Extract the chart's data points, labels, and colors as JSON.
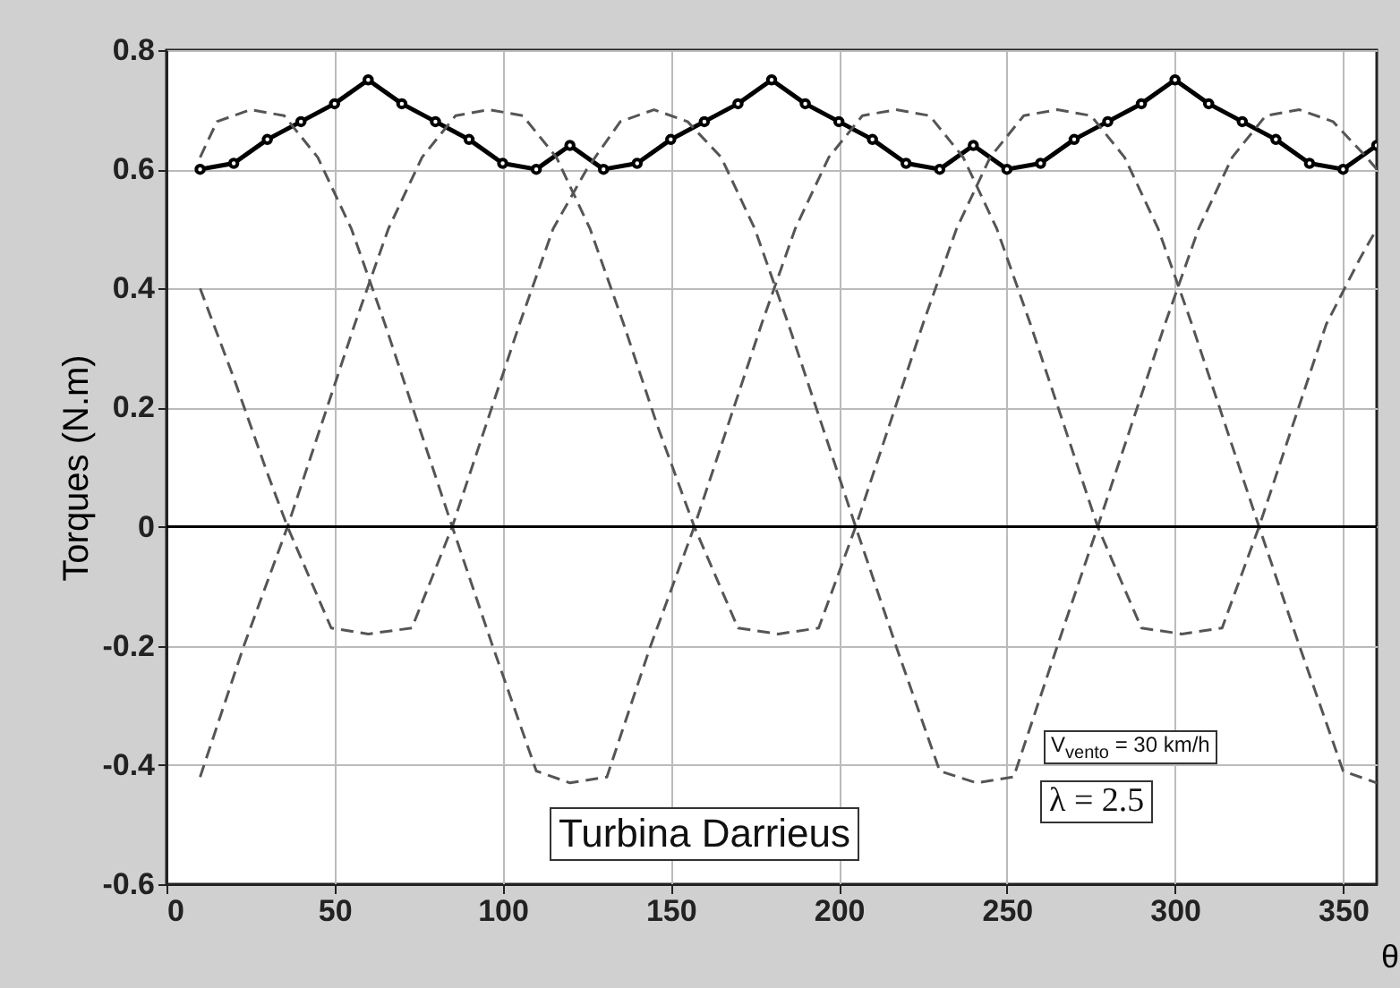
{
  "chart_data": {
    "type": "line",
    "ylabel": "Torques (N.m)",
    "xlabel": "θ",
    "xlim": [
      0,
      360
    ],
    "xticks": [
      0,
      50,
      100,
      150,
      200,
      250,
      300,
      350
    ],
    "ylim": [
      -0.6,
      0.8
    ],
    "yticks": [
      -0.6,
      -0.4,
      -0.2,
      0,
      0.2,
      0.4,
      0.6,
      0.8
    ],
    "grid": true,
    "ref_lines": [
      {
        "axis": "y",
        "value": 0,
        "color": "#000000"
      }
    ],
    "annotations": [
      "Turbina Darrieus",
      "V$_{vento}$ = 30 km/h",
      "λ = 2.5"
    ],
    "series": [
      {
        "color": "#000000",
        "line_style": "solid",
        "marker": "circle",
        "x": [
          10,
          20,
          30,
          40,
          50,
          60,
          70,
          80,
          90,
          100,
          110,
          120,
          130,
          140,
          150,
          160,
          170,
          180,
          190,
          200,
          210,
          220,
          230,
          240,
          250,
          260,
          270,
          280,
          290,
          300,
          310,
          320,
          330,
          340,
          350,
          360
        ],
        "values": [
          0.6,
          0.61,
          0.65,
          0.68,
          0.71,
          0.75,
          0.71,
          0.68,
          0.65,
          0.61,
          0.6,
          0.64,
          0.6,
          0.61,
          0.65,
          0.68,
          0.71,
          0.75,
          0.71,
          0.68,
          0.65,
          0.61,
          0.6,
          0.64,
          0.6,
          0.61,
          0.65,
          0.68,
          0.71,
          0.75,
          0.71,
          0.68,
          0.65,
          0.61,
          0.6,
          0.64
        ]
      },
      {
        "color": "#555555",
        "line_style": "dashed",
        "marker": "none",
        "x": [
          10,
          20,
          30,
          36,
          49,
          60,
          73,
          85,
          95,
          105,
          115,
          125,
          135,
          145,
          155,
          165,
          175,
          185,
          195,
          205,
          217,
          230,
          241,
          252,
          265,
          277,
          287,
          297,
          307,
          317,
          327,
          337,
          347,
          357,
          360
        ],
        "values": [
          0.4,
          0.25,
          0.09,
          0,
          -0.17,
          -0.18,
          -0.17,
          0,
          0.17,
          0.34,
          0.5,
          0.6,
          0.68,
          0.7,
          0.68,
          0.62,
          0.5,
          0.34,
          0.17,
          0,
          -0.2,
          -0.41,
          -0.43,
          -0.42,
          -0.2,
          0,
          0.17,
          0.34,
          0.5,
          0.62,
          0.69,
          0.7,
          0.68,
          0.62,
          0.6
        ]
      },
      {
        "color": "#555555",
        "line_style": "dashed",
        "marker": "none",
        "x": [
          10,
          23,
          36,
          46,
          56,
          66,
          76,
          86,
          96,
          106,
          116,
          126,
          136,
          146,
          157,
          170,
          182,
          194,
          205,
          215,
          225,
          235,
          245,
          255,
          265,
          275,
          285,
          295,
          305,
          315,
          325,
          337,
          350,
          360
        ],
        "values": [
          -0.42,
          -0.2,
          0,
          0.17,
          0.34,
          0.5,
          0.62,
          0.69,
          0.7,
          0.69,
          0.62,
          0.5,
          0.34,
          0.17,
          0,
          -0.17,
          -0.18,
          -0.17,
          0,
          0.17,
          0.34,
          0.5,
          0.62,
          0.69,
          0.7,
          0.69,
          0.62,
          0.5,
          0.34,
          0.17,
          0,
          -0.2,
          -0.41,
          -0.43
        ]
      },
      {
        "color": "#555555",
        "line_style": "dashed",
        "marker": "none",
        "x": [
          10,
          15,
          25,
          35,
          45,
          55,
          65,
          75,
          85,
          97,
          110,
          120,
          131,
          144,
          157,
          167,
          177,
          187,
          197,
          207,
          217,
          227,
          237,
          247,
          257,
          267,
          277,
          290,
          302,
          314,
          325,
          335,
          345,
          355,
          360
        ],
        "values": [
          0.62,
          0.68,
          0.7,
          0.69,
          0.62,
          0.5,
          0.34,
          0.17,
          0,
          -0.2,
          -0.41,
          -0.43,
          -0.42,
          -0.2,
          0,
          0.17,
          0.34,
          0.5,
          0.62,
          0.69,
          0.7,
          0.69,
          0.62,
          0.5,
          0.34,
          0.17,
          0,
          -0.17,
          -0.18,
          -0.17,
          0,
          0.17,
          0.34,
          0.45,
          0.5
        ]
      }
    ]
  }
}
